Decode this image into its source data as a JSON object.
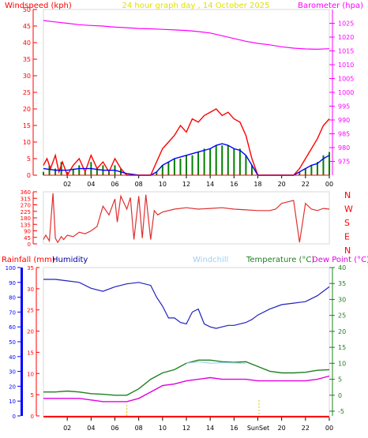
{
  "header": {
    "left_title": "Windspeed (kph)",
    "center_title": "24 hour graph day , 14 October 2025",
    "right_title": "Barometer (hpa)"
  },
  "legend2": {
    "rain": "Rainfall (mm)",
    "humidity": "Humidity",
    "windchill": "Windchill",
    "temperature": "Temperature (°C)",
    "dewpoint": "Dew Point (°C)"
  },
  "marks": {
    "sun": "Sun",
    "set": "Set"
  },
  "colors": {
    "wind": "#ff0000",
    "gust": "#ff0000",
    "avg": "#0000ff",
    "green": "#008000",
    "baro": "#ff00ff",
    "dir": "#e03030",
    "humidity": "#2020c0",
    "temp": "#208020",
    "dew": "#e000e0",
    "windchill": "#9fd0f0",
    "rain": "#ff0000",
    "title_yellow": "#e0e000"
  },
  "chart_data": [
    {
      "type": "line",
      "name": "wind_baro",
      "x_ticks": [
        "02",
        "04",
        "06",
        "08",
        "10",
        "12",
        "14",
        "16",
        "18",
        "20",
        "22",
        "00"
      ],
      "left_axis": {
        "ylim": [
          0,
          50
        ],
        "ticks": [
          0,
          5,
          10,
          15,
          20,
          25,
          30,
          35,
          40,
          45,
          50
        ]
      },
      "right_axis": {
        "ylim": [
          970,
          1030
        ],
        "ticks": [
          975,
          980,
          985,
          990,
          995,
          1000,
          1005,
          1010,
          1015,
          1020,
          1025
        ]
      },
      "series": [
        {
          "key": "barometer",
          "axis": "right",
          "x": [
            0,
            1,
            2,
            3,
            4,
            5,
            6,
            7,
            8,
            9,
            10,
            11,
            12,
            13,
            14,
            15,
            16,
            17,
            18,
            19,
            20,
            21,
            22,
            23,
            24
          ],
          "y": [
            1026,
            1025.5,
            1025,
            1024.5,
            1024.2,
            1024,
            1023.6,
            1023.4,
            1023.1,
            1023,
            1022.8,
            1022.6,
            1022.4,
            1022,
            1021.5,
            1020.5,
            1019.5,
            1018.5,
            1017.7,
            1017.2,
            1016.5,
            1016,
            1015.7,
            1015.6,
            1015.8
          ]
        },
        {
          "key": "gust",
          "axis": "left",
          "x": [
            0,
            0.3,
            0.6,
            1,
            1.3,
            1.6,
            2,
            2.5,
            3,
            3.5,
            4,
            4.5,
            5,
            5.5,
            6,
            6.5,
            7,
            7.5,
            8,
            8.5,
            9,
            9.5,
            10,
            10.5,
            11,
            11.5,
            12,
            12.5,
            13,
            13.5,
            14,
            14.5,
            15,
            15.5,
            16,
            16.5,
            17,
            17.5,
            18,
            19,
            20,
            21,
            21.5,
            22,
            22.5,
            23,
            23.5,
            24
          ],
          "y": [
            3,
            5,
            2,
            6,
            1,
            4,
            0,
            3,
            5,
            1,
            6,
            2,
            4,
            1,
            5,
            2,
            0,
            0,
            0,
            0,
            0,
            4,
            8,
            10,
            12,
            15,
            13,
            17,
            16,
            18,
            19,
            20,
            18,
            19,
            17,
            16,
            12,
            5,
            0,
            0,
            0,
            0,
            2,
            5,
            8,
            11,
            15,
            17
          ]
        },
        {
          "key": "wind",
          "axis": "left",
          "x": [
            0,
            0.5,
            1,
            1.5,
            2,
            2.5,
            3,
            3.5,
            4,
            4.5,
            5,
            5.5,
            6,
            6.5,
            7,
            7.5,
            8,
            8.5,
            9,
            9.5,
            10,
            10.5,
            11,
            11.5,
            12,
            12.5,
            13,
            13.5,
            14,
            14.5,
            15,
            15.5,
            16,
            16.5,
            17,
            17.5,
            18,
            19,
            20,
            21,
            21.5,
            22,
            22.5,
            23,
            23.5,
            24
          ],
          "y": [
            1,
            3,
            2,
            4,
            1,
            2,
            3,
            1,
            4,
            2,
            3,
            1,
            3,
            2,
            0,
            0,
            0,
            0,
            0,
            1,
            3,
            4,
            5,
            5,
            6,
            6,
            7,
            8,
            8,
            9,
            9,
            9,
            8,
            8,
            6,
            3,
            0,
            0,
            0,
            0,
            1,
            2,
            3,
            4,
            6,
            7
          ]
        },
        {
          "key": "average",
          "axis": "left",
          "x": [
            0,
            1,
            2,
            3,
            4,
            5,
            6,
            7,
            8,
            9,
            9.5,
            10,
            10.5,
            11,
            11.5,
            12,
            12.5,
            13,
            13.5,
            14,
            14.5,
            15,
            15.5,
            16,
            16.5,
            17,
            17.5,
            18,
            19,
            20,
            21,
            21.5,
            22,
            22.5,
            23,
            23.5,
            24
          ],
          "y": [
            2,
            1.5,
            1.5,
            2,
            2,
            1.5,
            1.5,
            0.5,
            0,
            0,
            1,
            3,
            4,
            5,
            5.5,
            6,
            6.5,
            7,
            7.5,
            8,
            9,
            9.5,
            9,
            8,
            7.5,
            6,
            3,
            0,
            0,
            0,
            0,
            1,
            2,
            3,
            3.5,
            5,
            6
          ]
        }
      ]
    },
    {
      "type": "line",
      "name": "wind_direction",
      "y_ticks": [
        0,
        45,
        90,
        135,
        180,
        225,
        270,
        315,
        360
      ],
      "right_labels": [
        "N",
        "W",
        "S",
        "E",
        "N"
      ],
      "ylim": [
        0,
        360
      ],
      "x": [
        0,
        0.2,
        0.5,
        0.8,
        1,
        1.2,
        1.5,
        1.7,
        2,
        2.5,
        3,
        3.5,
        4,
        4.5,
        5,
        5.5,
        6,
        6.2,
        6.5,
        7,
        7.3,
        7.6,
        8,
        8.3,
        8.6,
        9,
        9.3,
        9.6,
        10,
        11,
        12,
        13,
        14,
        15,
        16,
        17,
        18,
        19,
        19.5,
        20,
        20.5,
        21,
        21.5,
        22,
        22.5,
        23,
        23.5,
        24
      ],
      "y": [
        30,
        60,
        20,
        350,
        40,
        10,
        50,
        30,
        60,
        50,
        80,
        70,
        90,
        120,
        260,
        200,
        310,
        150,
        330,
        240,
        320,
        30,
        330,
        40,
        340,
        30,
        230,
        200,
        220,
        240,
        250,
        240,
        245,
        250,
        240,
        235,
        230,
        230,
        240,
        280,
        290,
        300,
        10,
        280,
        240,
        230,
        245,
        240
      ]
    },
    {
      "type": "line",
      "name": "temp_humidity",
      "x_ticks": [
        "02",
        "04",
        "06",
        "08",
        "10",
        "12",
        "14",
        "16",
        "18",
        "20",
        "22",
        "00"
      ],
      "humidity_axis": {
        "ylim": [
          0,
          100
        ],
        "ticks": [
          0,
          10,
          20,
          30,
          40,
          50,
          60,
          70,
          80,
          90,
          100
        ]
      },
      "rain_axis": {
        "ylim": [
          0,
          35
        ],
        "ticks": [
          0,
          5,
          10,
          15,
          20,
          25,
          30,
          35
        ]
      },
      "temp_axis": {
        "ylim": [
          -5,
          40
        ],
        "ticks": [
          -5,
          0,
          5,
          10,
          15,
          20,
          25,
          30,
          35,
          40
        ]
      },
      "rainfall_total": 0,
      "sun_rise_hour": 7,
      "sun_set_hour": 18.5,
      "series": [
        {
          "key": "humidity",
          "axis": "humidity",
          "x": [
            0,
            1,
            2,
            3,
            4,
            5,
            6,
            7,
            8,
            9,
            9.5,
            10,
            10.5,
            11,
            11.5,
            12,
            12.5,
            13,
            13.5,
            14,
            14.5,
            15,
            15.5,
            16,
            16.5,
            17,
            17.5,
            18,
            19,
            20,
            21,
            22,
            23,
            24
          ],
          "y": [
            92,
            92,
            91,
            90,
            86,
            84,
            87,
            89,
            90,
            88,
            80,
            74,
            66,
            66,
            63,
            62,
            70,
            72,
            62,
            60,
            59,
            60,
            61,
            61,
            62,
            63,
            65,
            68,
            72,
            75,
            76,
            77,
            81,
            87
          ]
        },
        {
          "key": "temperature",
          "axis": "temp",
          "x": [
            0,
            1,
            2,
            3,
            4,
            5,
            6,
            7,
            8,
            9,
            10,
            11,
            12,
            13,
            14,
            15,
            16,
            17,
            18,
            19,
            20,
            21,
            22,
            23,
            24
          ],
          "y": [
            1,
            1,
            1.3,
            1,
            0.5,
            0.3,
            0,
            0,
            2,
            5,
            7,
            8,
            10,
            11,
            11,
            10.5,
            10.3,
            10.5,
            9,
            7.5,
            7,
            7,
            7.2,
            7.8,
            8
          ]
        },
        {
          "key": "windchill",
          "axis": "temp",
          "x": [
            12,
            13,
            14,
            15,
            16,
            17
          ],
          "y": [
            10,
            10.5,
            10,
            10.2,
            10.1,
            10
          ]
        },
        {
          "key": "dewpoint",
          "axis": "temp",
          "x": [
            0,
            1,
            2,
            3,
            4,
            5,
            6,
            7,
            8,
            9,
            10,
            11,
            12,
            13,
            14,
            15,
            16,
            17,
            18,
            19,
            20,
            21,
            22,
            23,
            24
          ],
          "y": [
            -1,
            -1,
            -1,
            -1,
            -1.5,
            -2,
            -2,
            -2,
            -1,
            1,
            3,
            3.5,
            4.5,
            5,
            5.5,
            5,
            5,
            5,
            4.5,
            4.5,
            4.5,
            4.5,
            4.5,
            5,
            6
          ]
        }
      ]
    }
  ]
}
